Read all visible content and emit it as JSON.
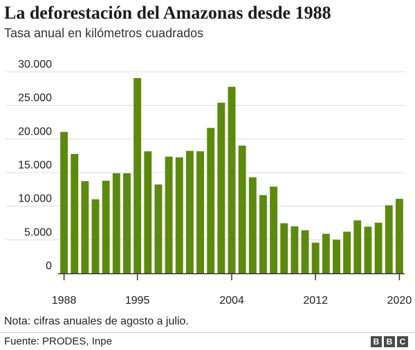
{
  "header": {
    "title": "La deforestación del Amazonas desde 1988",
    "subtitle": "Tasa anual en kilómetros cuadrados"
  },
  "footer": {
    "note": "Nota: cifras anuales de agosto a julio.",
    "source": "Fuente: PRODES, Inpe",
    "logo_letters": [
      "B",
      "B",
      "C"
    ]
  },
  "colors": {
    "bar": "#5b8a0e",
    "grid": "#dcdcdc",
    "axis": "#333333"
  },
  "chart_data": {
    "type": "bar",
    "categories": [
      1988,
      1989,
      1990,
      1991,
      1992,
      1993,
      1994,
      1995,
      1996,
      1997,
      1998,
      1999,
      2000,
      2001,
      2002,
      2003,
      2004,
      2005,
      2006,
      2007,
      2008,
      2009,
      2010,
      2011,
      2012,
      2013,
      2014,
      2015,
      2016,
      2017,
      2018,
      2019,
      2020
    ],
    "values": [
      21050,
      17770,
      13730,
      11030,
      13790,
      14900,
      14900,
      29060,
      18160,
      13230,
      17380,
      17260,
      18230,
      18170,
      21650,
      25400,
      27770,
      19010,
      14290,
      11650,
      12910,
      7460,
      7000,
      6420,
      4570,
      5890,
      5010,
      6210,
      7890,
      6950,
      7540,
      10130,
      11090
    ],
    "title": "La deforestación del Amazonas desde 1988",
    "subtitle": "Tasa anual en kilómetros cuadrados",
    "xlabel": "",
    "ylabel": "",
    "ylim": [
      0,
      30000
    ],
    "yticks": [
      0,
      5000,
      10000,
      15000,
      20000,
      25000,
      30000
    ],
    "ytick_labels": [
      "0",
      "5.000",
      "10.000",
      "15.000",
      "20.000",
      "25.000",
      "30.000"
    ],
    "xticks": [
      1988,
      1995,
      2004,
      2012,
      2020
    ],
    "xtick_labels": [
      "1988",
      "1995",
      "2004",
      "2012",
      "2020"
    ],
    "grid": true,
    "legend": "none"
  }
}
